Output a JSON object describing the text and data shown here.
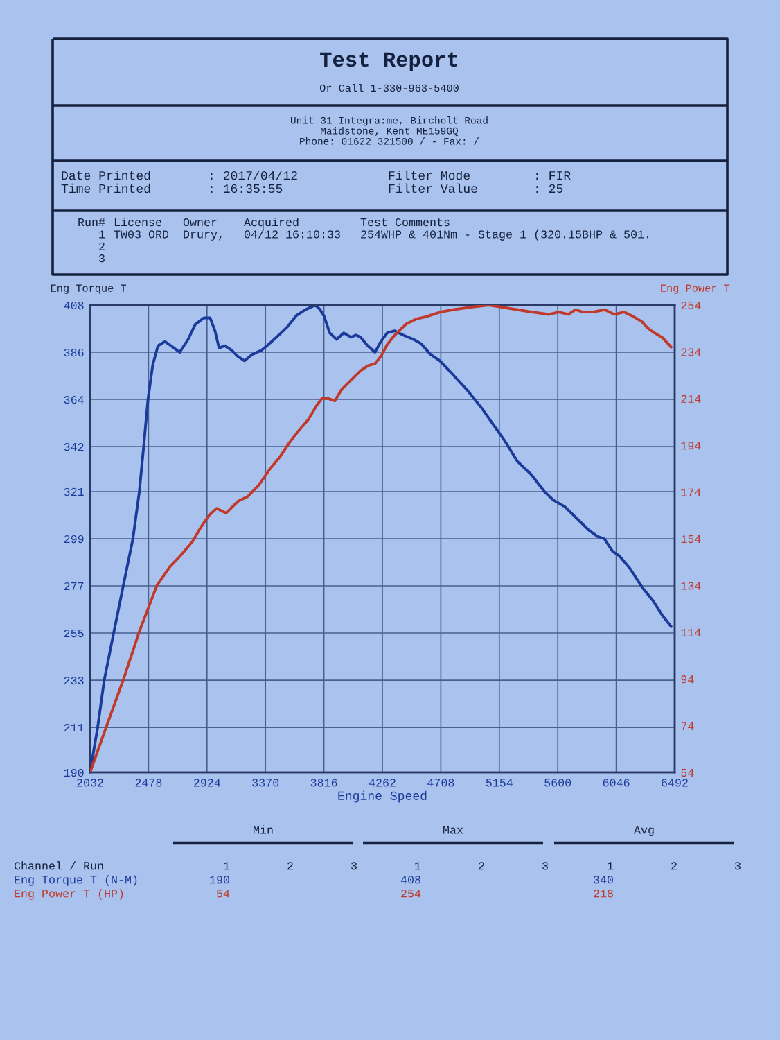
{
  "chart_data": {
    "type": "line",
    "title": "Test Report",
    "subtitle": "Or Call 1-330-963-5400",
    "xlabel": "Engine Speed",
    "ylabel": "Eng Torque T",
    "y2label": "Eng Power T",
    "xlim": [
      2032,
      6492
    ],
    "xticks": [
      2032,
      2478,
      2924,
      3370,
      3816,
      4262,
      4708,
      5154,
      5600,
      6046,
      6492
    ],
    "ylim": [
      190,
      408
    ],
    "yticks": [
      190,
      211,
      233,
      255,
      277,
      299,
      321,
      342,
      364,
      386,
      408
    ],
    "y2lim": [
      54,
      254
    ],
    "y2ticks": [
      54,
      74,
      94,
      114,
      134,
      154,
      174,
      194,
      214,
      234,
      254
    ],
    "grid": true,
    "series": [
      {
        "color": "#1b3a9a",
        "x": [
          2032,
          2090,
          2140,
          2212,
          2285,
          2359,
          2408,
          2441,
          2474,
          2510,
          2550,
          2603,
          2650,
          2716,
          2780,
          2835,
          2900,
          2948,
          2985,
          3016,
          3060,
          3111,
          3160,
          3210,
          3270,
          3341,
          3400,
          3472,
          3540,
          3604,
          3680,
          3751,
          3785,
          3816,
          3860,
          3912,
          3967,
          4022,
          4060,
          4096,
          4150,
          4206,
          4250,
          4299,
          4355,
          4420,
          4500,
          4557,
          4629,
          4701,
          4808,
          4914,
          5019,
          5122,
          5192,
          5293,
          5397,
          5498,
          5567,
          5653,
          5737,
          5837,
          5904,
          5955,
          6020,
          6070,
          6152,
          6248,
          6328,
          6400,
          6465
        ],
        "values": [
          190,
          211,
          233,
          255,
          277,
          299,
          321,
          342,
          364,
          380,
          389,
          391,
          389,
          386,
          392,
          399,
          402,
          402,
          396,
          388,
          389,
          387,
          384,
          382,
          385,
          387,
          390,
          394,
          398,
          403,
          406,
          408,
          406,
          403,
          395,
          392,
          395,
          393,
          394,
          393,
          389,
          386,
          391,
          395,
          396,
          394,
          392,
          390,
          385,
          382,
          375,
          368,
          360,
          351,
          345,
          335,
          329,
          321,
          317,
          314,
          309,
          303,
          300,
          299,
          293,
          291,
          285,
          276,
          270,
          263,
          258
        ]
      },
      {
        "color": "#c0392b",
        "axis": "y2",
        "x": [
          2032,
          2159,
          2288,
          2406,
          2542,
          2641,
          2726,
          2816,
          2878,
          2940,
          2998,
          3070,
          3160,
          3233,
          3320,
          3406,
          3480,
          3551,
          3620,
          3697,
          3760,
          3800,
          3850,
          3899,
          3953,
          4025,
          4098,
          4150,
          4207,
          4250,
          4298,
          4354,
          4409,
          4446,
          4520,
          4594,
          4704,
          4800,
          4925,
          5073,
          5183,
          5294,
          5405,
          5534,
          5607,
          5681,
          5736,
          5792,
          5865,
          5958,
          6031,
          6105,
          6179,
          6240,
          6289,
          6340,
          6400,
          6465
        ],
        "values": [
          54,
          74,
          94,
          114,
          134,
          142,
          147,
          153,
          159,
          164,
          167,
          165,
          170,
          172,
          177,
          184,
          189,
          195,
          200,
          205,
          211,
          214,
          214,
          213,
          218,
          222,
          226,
          228,
          229,
          232,
          237,
          241,
          244,
          246,
          248,
          249,
          251,
          252,
          253,
          254,
          253,
          252,
          251,
          250,
          251,
          250,
          252,
          251,
          251,
          252,
          250,
          251,
          249,
          247,
          244,
          242,
          240,
          236
        ]
      }
    ],
    "annotations": [
      "Unit 31 Integra:me, Bircholt Road\nMaidstone, Kent ME159GQ\nPhone: 01622 321500 / - Fax: /",
      "Date Printed\nTime Printed",
      ": 2017/04/12\n: 16:35:55",
      "Filter Mode\nFilter Value",
      ": FIR\n: 25",
      "Run#\n1\n2\n3",
      "License\nTW03 ORD",
      "Owner\nDrury,",
      "Acquired\n04/12 16:10:33",
      "Test Comments\n254WHP & 401Nm - Stage 1 (320.15BHP & 501.",
      "Min",
      "Max",
      "Avg",
      "Channel / Run",
      "Eng Torque T (N-M)",
      "Eng Power T (HP)",
      "1",
      "2",
      "3",
      "1",
      "2",
      "3",
      "1",
      "2",
      "3",
      "190",
      "408",
      "340",
      "54",
      "254",
      "218"
    ]
  }
}
